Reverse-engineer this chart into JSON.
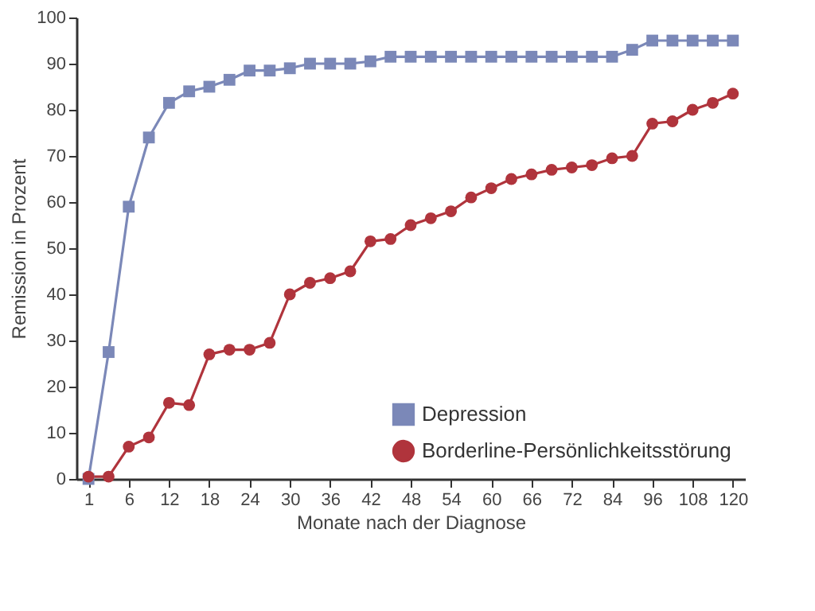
{
  "chart_data": {
    "type": "line",
    "xlabel": "Monate nach der Diagnose",
    "ylabel": "Remission in Prozent",
    "categories": [
      "1",
      null,
      "6",
      null,
      "12",
      null,
      "18",
      null,
      "24",
      null,
      "30",
      null,
      "36",
      null,
      "42",
      null,
      "48",
      null,
      "54",
      null,
      "60",
      null,
      "66",
      null,
      "72",
      null,
      "84",
      null,
      "96",
      null,
      "108",
      null,
      "120"
    ],
    "ylim": [
      0,
      100
    ],
    "yticks": [
      0,
      10,
      20,
      30,
      40,
      50,
      60,
      70,
      80,
      90,
      100
    ],
    "grid": false,
    "legend": "bottom right",
    "series": [
      {
        "name": "Depression",
        "color": "#7b88b8",
        "marker": "square",
        "values": [
          0,
          27.5,
          59,
          74,
          81.5,
          84,
          85,
          86.5,
          88.5,
          88.5,
          89,
          90,
          90,
          90,
          90.5,
          91.5,
          91.5,
          91.5,
          91.5,
          91.5,
          91.5,
          91.5,
          91.5,
          91.5,
          91.5,
          91.5,
          91.5,
          93,
          95,
          95,
          95,
          95,
          95
        ]
      },
      {
        "name": "Borderline-Persönlichkeitsstörung",
        "color": "#b0343c",
        "marker": "circle",
        "values": [
          0.5,
          0.5,
          7,
          9,
          16.5,
          16,
          27,
          28,
          28,
          29.5,
          40,
          42.5,
          43.5,
          45,
          51.5,
          52,
          55,
          56.5,
          58,
          61,
          63,
          65,
          66,
          67,
          67.5,
          68,
          69.5,
          70,
          77,
          77.5,
          80,
          81.5,
          83.5
        ]
      }
    ]
  }
}
